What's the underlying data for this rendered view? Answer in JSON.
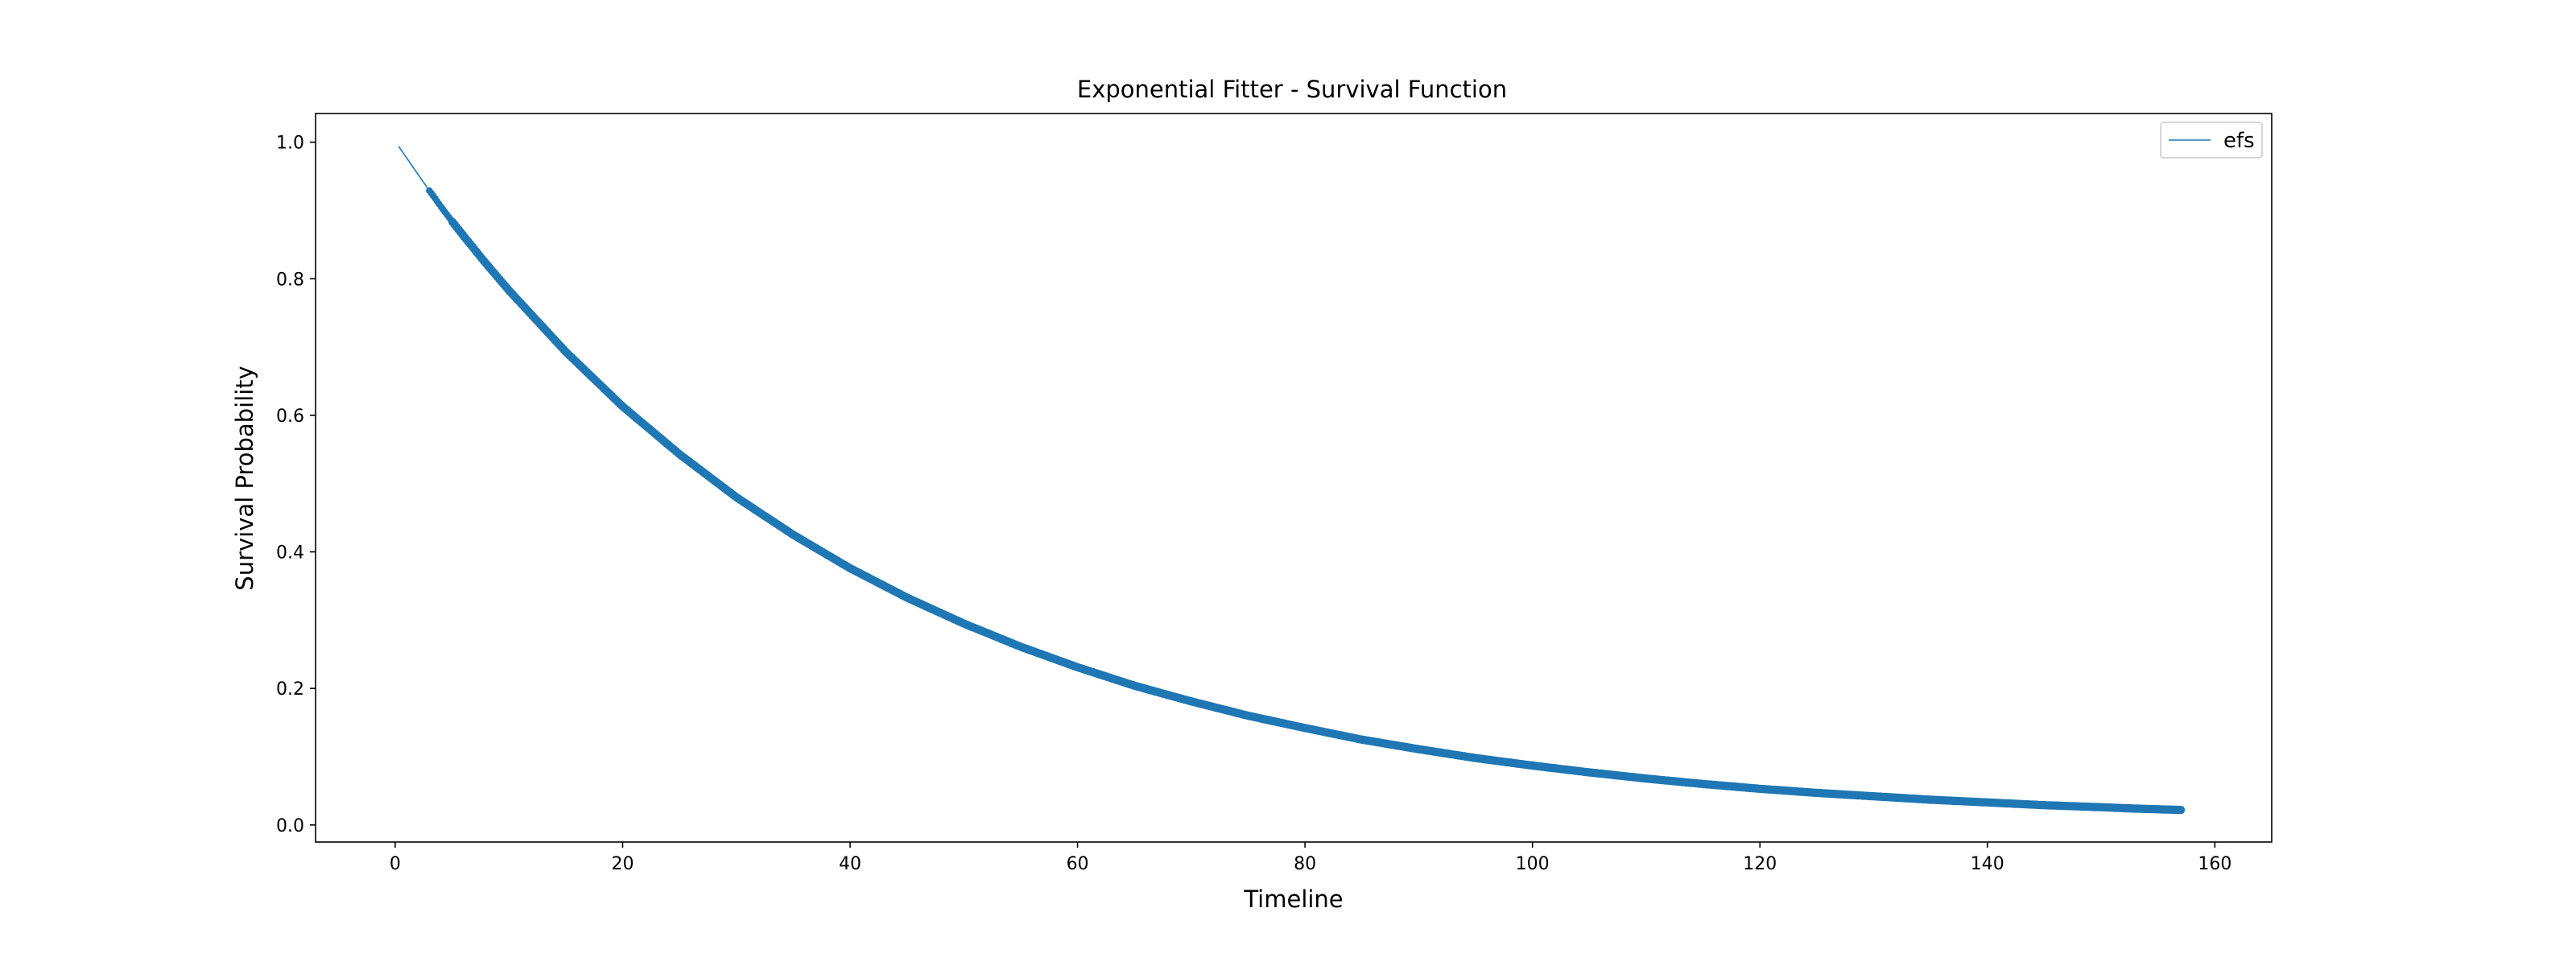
{
  "chart_data": {
    "type": "line",
    "title": "Exponential Fitter - Survival Function",
    "xlabel": "Timeline",
    "ylabel": "Survival Probability",
    "xlim": [
      -7,
      165
    ],
    "ylim": [
      -0.025,
      1.042
    ],
    "x_ticks": [
      0,
      20,
      40,
      60,
      80,
      100,
      120,
      140,
      160
    ],
    "y_ticks": [
      0.0,
      0.2,
      0.4,
      0.6,
      0.8,
      1.0
    ],
    "x_tick_labels": [
      "0",
      "20",
      "40",
      "60",
      "80",
      "100",
      "120",
      "140",
      "160"
    ],
    "y_tick_labels": [
      "0.0",
      "0.2",
      "0.4",
      "0.6",
      "0.8",
      "1.0"
    ],
    "grid": false,
    "legend_position": "top-right",
    "line_color": "#1f77b4",
    "marker_color": "#1f77b4",
    "series": [
      {
        "name": "efs",
        "x": [
          0.3,
          3.0,
          3.5,
          4.0,
          4.5,
          5.0,
          6.0,
          8.0,
          10.0,
          15.0,
          20.0,
          25.0,
          30.0,
          35.0,
          40.0,
          45.0,
          50.0,
          55.0,
          60.0,
          65.0,
          70.0,
          75.0,
          80.0,
          85.0,
          90.0,
          95.0,
          100.0,
          105.0,
          110.0,
          115.0,
          120.0,
          125.0,
          130.0,
          135.0,
          140.0,
          145.0,
          150.0,
          153.0,
          155.0,
          157.0
        ],
        "y": [
          0.994,
          0.929,
          0.918,
          0.906,
          0.895,
          0.884,
          0.863,
          0.822,
          0.783,
          0.693,
          0.613,
          0.543,
          0.48,
          0.425,
          0.376,
          0.333,
          0.295,
          0.261,
          0.231,
          0.204,
          0.181,
          0.16,
          0.142,
          0.125,
          0.111,
          0.098,
          0.087,
          0.077,
          0.068,
          0.06,
          0.053,
          0.047,
          0.042,
          0.037,
          0.033,
          0.029,
          0.026,
          0.024,
          0.023,
          0.022
        ]
      }
    ],
    "markers": {
      "x_start": 3.0,
      "x_end": 157.0
    }
  }
}
